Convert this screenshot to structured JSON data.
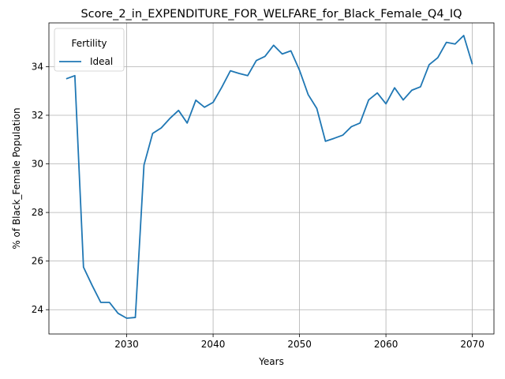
{
  "chart_data": {
    "type": "line",
    "title": "Score_2_in_EXPENDITURE_FOR_WELFARE_for_Black_Female_Q4_IQ",
    "xlabel": "Years",
    "ylabel": "% of Black_Female Population",
    "xlim": [
      2021,
      2072.5
    ],
    "ylim": [
      23.0,
      35.8
    ],
    "grid": true,
    "legend": {
      "title": "Fertility",
      "placement": "top-left"
    },
    "x_ticks": [
      2030,
      2040,
      2050,
      2060,
      2070
    ],
    "y_ticks": [
      24,
      26,
      28,
      30,
      32,
      34
    ],
    "series": [
      {
        "name": "Ideal",
        "color": "#1f77b4",
        "x": [
          2023,
          2024,
          2025,
          2026,
          2027,
          2028,
          2029,
          2030,
          2031,
          2032,
          2033,
          2034,
          2035,
          2036,
          2037,
          2038,
          2039,
          2040,
          2041,
          2042,
          2043,
          2044,
          2045,
          2046,
          2047,
          2048,
          2049,
          2050,
          2051,
          2052,
          2053,
          2054,
          2055,
          2056,
          2057,
          2058,
          2059,
          2060,
          2061,
          2062,
          2063,
          2064,
          2065,
          2066,
          2067,
          2068,
          2069,
          2070
        ],
        "y": [
          33.5,
          33.63,
          25.75,
          25.0,
          24.3,
          24.3,
          23.85,
          23.65,
          23.68,
          29.95,
          31.25,
          31.48,
          31.87,
          32.2,
          31.68,
          32.62,
          32.33,
          32.53,
          33.15,
          33.83,
          33.72,
          33.63,
          34.25,
          34.42,
          34.88,
          34.52,
          34.65,
          33.85,
          32.85,
          32.28,
          30.93,
          31.05,
          31.18,
          31.53,
          31.68,
          32.63,
          32.92,
          32.47,
          33.13,
          32.63,
          33.03,
          33.17,
          34.08,
          34.37,
          35.0,
          34.93,
          35.28,
          34.1
        ]
      }
    ]
  }
}
